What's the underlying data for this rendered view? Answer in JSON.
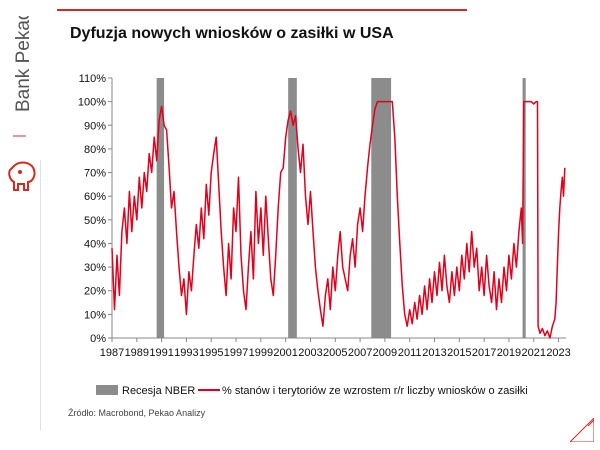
{
  "brand": {
    "name": "Bank Pekao"
  },
  "title": "Dyfuzja nowych wniosków o zasiłki w USA",
  "source": "Źródło: Macrobond, Pekao Analizy",
  "colors": {
    "accent": "#d52b1e",
    "recession": "#8c8c8c",
    "line": "#e3001b"
  },
  "chart_data": {
    "type": "line",
    "title": "Dyfuzja nowych wniosków o zasiłki w USA",
    "ylim": [
      0,
      110
    ],
    "xlim": [
      1987,
      2023.6
    ],
    "y_ticks": [
      "0%",
      "10%",
      "20%",
      "30%",
      "40%",
      "50%",
      "60%",
      "70%",
      "80%",
      "90%",
      "100%",
      "110%"
    ],
    "x_ticks": [
      "1987",
      "1989",
      "1991",
      "1993",
      "1995",
      "1997",
      "1999",
      "2001",
      "2003",
      "2005",
      "2007",
      "2009",
      "2011",
      "2013",
      "2015",
      "2017",
      "2019",
      "2021",
      "2023"
    ],
    "legend": [
      "Recesja NBER",
      "% stanów i terytoriów ze wzrostem r/r liczby wniosków o zasiłki"
    ],
    "recessions": [
      [
        1990.6,
        1991.2
      ],
      [
        2001.2,
        2001.9
      ],
      [
        2007.9,
        2009.5
      ],
      [
        2020.1,
        2020.35
      ]
    ],
    "series": [
      {
        "name": "% stanów i terytoriów ze wzrostem r/r liczby wniosków o zasiłki",
        "points": [
          [
            1987.0,
            38
          ],
          [
            1987.2,
            12
          ],
          [
            1987.4,
            35
          ],
          [
            1987.6,
            18
          ],
          [
            1987.8,
            45
          ],
          [
            1988.0,
            55
          ],
          [
            1988.2,
            40
          ],
          [
            1988.4,
            62
          ],
          [
            1988.6,
            45
          ],
          [
            1988.8,
            60
          ],
          [
            1989.0,
            50
          ],
          [
            1989.2,
            68
          ],
          [
            1989.4,
            55
          ],
          [
            1989.6,
            70
          ],
          [
            1989.8,
            62
          ],
          [
            1990.0,
            78
          ],
          [
            1990.2,
            70
          ],
          [
            1990.4,
            85
          ],
          [
            1990.6,
            75
          ],
          [
            1990.8,
            92
          ],
          [
            1991.0,
            98
          ],
          [
            1991.2,
            90
          ],
          [
            1991.4,
            88
          ],
          [
            1991.6,
            72
          ],
          [
            1991.8,
            55
          ],
          [
            1992.0,
            62
          ],
          [
            1992.2,
            45
          ],
          [
            1992.4,
            30
          ],
          [
            1992.6,
            18
          ],
          [
            1992.8,
            25
          ],
          [
            1993.0,
            10
          ],
          [
            1993.2,
            28
          ],
          [
            1993.4,
            20
          ],
          [
            1993.6,
            35
          ],
          [
            1993.8,
            48
          ],
          [
            1994.0,
            38
          ],
          [
            1994.2,
            55
          ],
          [
            1994.4,
            42
          ],
          [
            1994.6,
            65
          ],
          [
            1994.8,
            52
          ],
          [
            1995.0,
            70
          ],
          [
            1995.2,
            78
          ],
          [
            1995.4,
            85
          ],
          [
            1995.6,
            65
          ],
          [
            1995.8,
            45
          ],
          [
            1996.0,
            30
          ],
          [
            1996.2,
            18
          ],
          [
            1996.4,
            40
          ],
          [
            1996.6,
            25
          ],
          [
            1996.8,
            55
          ],
          [
            1997.0,
            45
          ],
          [
            1997.2,
            68
          ],
          [
            1997.4,
            35
          ],
          [
            1997.6,
            20
          ],
          [
            1997.8,
            12
          ],
          [
            1998.0,
            30
          ],
          [
            1998.2,
            45
          ],
          [
            1998.4,
            25
          ],
          [
            1998.6,
            62
          ],
          [
            1998.8,
            40
          ],
          [
            1999.0,
            55
          ],
          [
            1999.2,
            35
          ],
          [
            1999.4,
            60
          ],
          [
            1999.6,
            42
          ],
          [
            1999.8,
            25
          ],
          [
            2000.0,
            18
          ],
          [
            2000.2,
            35
          ],
          [
            2000.4,
            55
          ],
          [
            2000.6,
            70
          ],
          [
            2000.8,
            72
          ],
          [
            2001.0,
            85
          ],
          [
            2001.2,
            92
          ],
          [
            2001.4,
            96
          ],
          [
            2001.6,
            90
          ],
          [
            2001.8,
            94
          ],
          [
            2002.0,
            80
          ],
          [
            2002.2,
            70
          ],
          [
            2002.4,
            82
          ],
          [
            2002.6,
            60
          ],
          [
            2002.8,
            48
          ],
          [
            2003.0,
            62
          ],
          [
            2003.2,
            45
          ],
          [
            2003.4,
            30
          ],
          [
            2003.6,
            20
          ],
          [
            2003.8,
            12
          ],
          [
            2004.0,
            5
          ],
          [
            2004.2,
            18
          ],
          [
            2004.4,
            25
          ],
          [
            2004.6,
            12
          ],
          [
            2004.8,
            30
          ],
          [
            2005.0,
            20
          ],
          [
            2005.2,
            35
          ],
          [
            2005.4,
            45
          ],
          [
            2005.6,
            30
          ],
          [
            2005.8,
            25
          ],
          [
            2006.0,
            20
          ],
          [
            2006.2,
            35
          ],
          [
            2006.4,
            42
          ],
          [
            2006.6,
            30
          ],
          [
            2006.8,
            48
          ],
          [
            2007.0,
            55
          ],
          [
            2007.2,
            45
          ],
          [
            2007.4,
            60
          ],
          [
            2007.6,
            72
          ],
          [
            2007.8,
            82
          ],
          [
            2008.0,
            90
          ],
          [
            2008.2,
            97
          ],
          [
            2008.4,
            100
          ],
          [
            2008.6,
            100
          ],
          [
            2008.8,
            100
          ],
          [
            2009.0,
            100
          ],
          [
            2009.2,
            100
          ],
          [
            2009.4,
            100
          ],
          [
            2009.6,
            100
          ],
          [
            2009.8,
            85
          ],
          [
            2010.0,
            60
          ],
          [
            2010.2,
            40
          ],
          [
            2010.4,
            22
          ],
          [
            2010.6,
            10
          ],
          [
            2010.8,
            5
          ],
          [
            2011.0,
            12
          ],
          [
            2011.2,
            6
          ],
          [
            2011.4,
            15
          ],
          [
            2011.6,
            8
          ],
          [
            2011.8,
            18
          ],
          [
            2012.0,
            10
          ],
          [
            2012.2,
            22
          ],
          [
            2012.4,
            12
          ],
          [
            2012.6,
            25
          ],
          [
            2012.8,
            15
          ],
          [
            2013.0,
            28
          ],
          [
            2013.2,
            18
          ],
          [
            2013.4,
            32
          ],
          [
            2013.6,
            20
          ],
          [
            2013.8,
            35
          ],
          [
            2014.0,
            22
          ],
          [
            2014.2,
            15
          ],
          [
            2014.4,
            28
          ],
          [
            2014.6,
            18
          ],
          [
            2014.8,
            30
          ],
          [
            2015.0,
            20
          ],
          [
            2015.2,
            35
          ],
          [
            2015.4,
            25
          ],
          [
            2015.6,
            40
          ],
          [
            2015.8,
            28
          ],
          [
            2016.0,
            45
          ],
          [
            2016.2,
            30
          ],
          [
            2016.4,
            38
          ],
          [
            2016.6,
            20
          ],
          [
            2016.8,
            30
          ],
          [
            2017.0,
            18
          ],
          [
            2017.2,
            35
          ],
          [
            2017.4,
            22
          ],
          [
            2017.6,
            15
          ],
          [
            2017.8,
            28
          ],
          [
            2018.0,
            12
          ],
          [
            2018.2,
            25
          ],
          [
            2018.4,
            15
          ],
          [
            2018.6,
            30
          ],
          [
            2018.8,
            20
          ],
          [
            2019.0,
            35
          ],
          [
            2019.2,
            25
          ],
          [
            2019.4,
            40
          ],
          [
            2019.6,
            30
          ],
          [
            2019.8,
            45
          ],
          [
            2020.0,
            55
          ],
          [
            2020.1,
            40
          ],
          [
            2020.2,
            100
          ],
          [
            2020.4,
            100
          ],
          [
            2020.6,
            100
          ],
          [
            2020.8,
            100
          ],
          [
            2021.0,
            99
          ],
          [
            2021.2,
            100
          ],
          [
            2021.3,
            100
          ],
          [
            2021.35,
            5
          ],
          [
            2021.5,
            2
          ],
          [
            2021.7,
            4
          ],
          [
            2021.9,
            1
          ],
          [
            2022.1,
            3
          ],
          [
            2022.3,
            0
          ],
          [
            2022.5,
            5
          ],
          [
            2022.7,
            8
          ],
          [
            2022.8,
            15
          ],
          [
            2022.9,
            30
          ],
          [
            2023.0,
            45
          ],
          [
            2023.1,
            55
          ],
          [
            2023.2,
            62
          ],
          [
            2023.3,
            68
          ],
          [
            2023.4,
            60
          ],
          [
            2023.5,
            72
          ]
        ]
      }
    ]
  }
}
